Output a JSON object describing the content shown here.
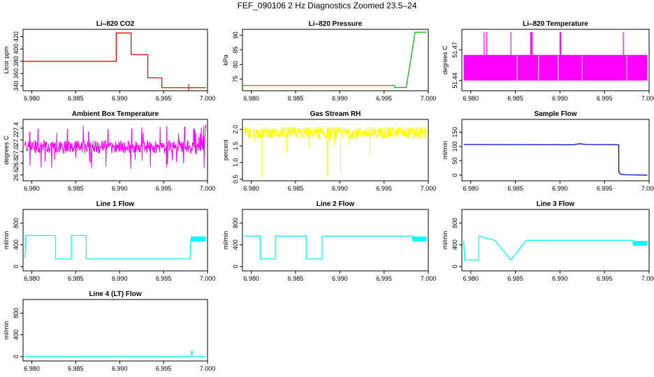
{
  "title": "FEF_090106  2 Hz Diagnostics Zoomed 23.5–24",
  "chart_data": [
    {
      "type": "line",
      "title": "Li–820 CO2",
      "ylabel": "Licor ppm",
      "color": "#ff0000",
      "xlim": [
        6.979,
        7.0
      ],
      "xticks": [
        "6.980",
        "6.985",
        "6.990",
        "6.995",
        "7.000"
      ],
      "ylim": [
        332,
        432
      ],
      "yticks": [
        "340",
        "360",
        "380",
        "400",
        "420"
      ],
      "ytick_values": [
        340,
        360,
        380,
        400,
        420
      ],
      "series": [
        {
          "x": [
            6.979,
            6.9896,
            6.9896,
            6.9913,
            6.9913,
            6.9932,
            6.9932,
            6.9948,
            6.9948,
            6.9998
          ],
          "y": [
            380,
            380,
            426,
            426,
            391,
            391,
            353,
            353,
            337,
            337
          ]
        }
      ]
    },
    {
      "type": "line",
      "title": "Li–820 Pressure",
      "ylabel": "kPa",
      "color": "#00c000",
      "xlim": [
        6.979,
        7.0
      ],
      "xticks": [
        "6.980",
        "6.985",
        "6.990",
        "6.995",
        "7.000"
      ],
      "ylim": [
        71,
        92
      ],
      "yticks": [
        "75",
        "80",
        "85",
        "90"
      ],
      "ytick_values": [
        75,
        80,
        85,
        90
      ],
      "series": [
        {
          "x": [
            6.979,
            6.9962,
            6.9962,
            6.9975,
            6.9985,
            6.9998
          ],
          "y": [
            72.8,
            72.8,
            72.1,
            72.1,
            91,
            91
          ]
        }
      ]
    },
    {
      "type": "line",
      "title": "Li–820 Temperature",
      "ylabel": "degrees C",
      "color": "#ff00ff",
      "xlim": [
        6.979,
        7.0
      ],
      "xticks": [
        "6.980",
        "6.985",
        "6.990",
        "6.995",
        "7.000"
      ],
      "ylim": [
        51.43,
        51.49
      ],
      "yticks": [
        "51.44",
        "51.47"
      ],
      "ytick_values": [
        51.44,
        51.47
      ],
      "series": [
        {
          "x": [
            6.9792,
            6.9998
          ],
          "y": [
            51.44,
            51.465
          ]
        }
      ]
    },
    {
      "type": "line",
      "title": "Ambient Box Temperature",
      "ylabel": "degrees C",
      "color": "#ff00ff",
      "xlim": [
        6.979,
        7.0
      ],
      "xticks": [
        "6.980",
        "6.985",
        "6.990",
        "6.995",
        "7.000"
      ],
      "ylim": [
        26.5,
        27.55
      ],
      "yticks": [
        "26.6",
        "26.8",
        "27.0",
        "27.2",
        "27.4"
      ],
      "ytick_values": [
        26.6,
        26.8,
        27.0,
        27.2,
        27.4
      ],
      "series": [
        {
          "x": [
            6.9792,
            6.9998
          ],
          "y": [
            27.05,
            27.05
          ]
        }
      ]
    },
    {
      "type": "line",
      "title": "Gas Stream RH",
      "ylabel": "percent",
      "color": "#ffff00",
      "xlim": [
        6.979,
        7.0
      ],
      "xticks": [
        "6.980",
        "6.985",
        "6.990",
        "6.995",
        "7.000"
      ],
      "ylim": [
        0.45,
        2.3
      ],
      "yticks": [
        "0.5",
        "1.0",
        "1.5",
        "2.0"
      ],
      "ytick_values": [
        0.5,
        1.0,
        1.5,
        2.0
      ],
      "series": [
        {
          "x": [
            6.9792,
            6.9998
          ],
          "y": [
            1.9,
            1.9
          ]
        }
      ]
    },
    {
      "type": "line",
      "title": "Sample Flow",
      "ylabel": "ml/min",
      "color": "#0000cc",
      "xlim": [
        6.979,
        7.0
      ],
      "xticks": [
        "6.980",
        "6.985",
        "6.990",
        "6.995",
        "7.000"
      ],
      "ylim": [
        -20,
        195
      ],
      "yticks": [
        "0",
        "50",
        "100",
        "150"
      ],
      "ytick_values": [
        0,
        50,
        100,
        150
      ],
      "series": [
        {
          "x": [
            6.9792,
            6.9915,
            6.9922,
            6.9929,
            6.9966,
            6.9966,
            6.9968,
            6.9975,
            6.9998
          ],
          "y": [
            107,
            106,
            110,
            107,
            106,
            10,
            3,
            1,
            0
          ]
        }
      ]
    },
    {
      "type": "line",
      "title": "Line 1 Flow",
      "ylabel": "ml/min",
      "color": "#00ffff",
      "xlim": [
        6.979,
        7.0
      ],
      "xticks": [
        "6.980",
        "6.985",
        "6.990",
        "6.995",
        "7.000"
      ],
      "ylim": [
        -80,
        1050
      ],
      "yticks": [
        "0",
        "400",
        "800"
      ],
      "ytick_values": [
        0,
        400,
        800
      ],
      "series": [
        {
          "x": [
            6.9792,
            6.9793,
            6.9827,
            6.9827,
            6.9845,
            6.9845,
            6.9862,
            6.9862,
            6.998,
            6.9981,
            6.9998
          ],
          "y": [
            150,
            570,
            570,
            140,
            140,
            570,
            570,
            140,
            140,
            500,
            500
          ]
        }
      ]
    },
    {
      "type": "line",
      "title": "Line 2 Flow",
      "ylabel": "ml/min",
      "color": "#00ffff",
      "xlim": [
        6.979,
        7.0
      ],
      "xticks": [
        "6.980",
        "6.985",
        "6.990",
        "6.995",
        "7.000"
      ],
      "ylim": [
        -80,
        1050
      ],
      "yticks": [
        "0",
        "400",
        "800"
      ],
      "ytick_values": [
        0,
        400,
        800
      ],
      "series": [
        {
          "x": [
            6.9792,
            6.981,
            6.981,
            6.9827,
            6.9827,
            6.9862,
            6.9862,
            6.988,
            6.988,
            6.9982,
            6.9982,
            6.9998
          ],
          "y": [
            560,
            560,
            140,
            140,
            560,
            560,
            140,
            140,
            560,
            560,
            500,
            500
          ]
        }
      ]
    },
    {
      "type": "line",
      "title": "Line 3 Flow",
      "ylabel": "ml/min",
      "color": "#00ffff",
      "xlim": [
        6.979,
        7.0
      ],
      "xticks": [
        "6.980",
        "6.985",
        "6.990",
        "6.995",
        "7.000"
      ],
      "ylim": [
        -80,
        1050
      ],
      "yticks": [
        "0",
        "400",
        "800"
      ],
      "ytick_values": [
        0,
        400,
        800
      ],
      "series": [
        {
          "x": [
            6.9792,
            6.9793,
            6.9809,
            6.9809,
            6.9827,
            6.9827,
            6.9845,
            6.9845,
            6.9862,
            6.9862,
            6.9982,
            6.9982,
            6.9998
          ],
          "y": [
            480,
            120,
            120,
            560,
            480,
            480,
            120,
            120,
            480,
            480,
            480,
            420,
            420
          ]
        }
      ]
    },
    {
      "type": "line",
      "title": "Line 4 (LT) Flow",
      "ylabel": "ml/min",
      "color": "#00ffff",
      "xlim": [
        6.979,
        7.0
      ],
      "xticks": [
        "6.980",
        "6.985",
        "6.990",
        "6.995",
        "7.000"
      ],
      "ylim": [
        -80,
        1050
      ],
      "yticks": [
        "0",
        "400",
        "800"
      ],
      "ytick_values": [
        0,
        400,
        800
      ],
      "series": [
        {
          "x": [
            6.9792,
            6.9981,
            6.9982,
            6.9983,
            6.9998
          ],
          "y": [
            2,
            2,
            110,
            2,
            2
          ]
        }
      ]
    }
  ]
}
